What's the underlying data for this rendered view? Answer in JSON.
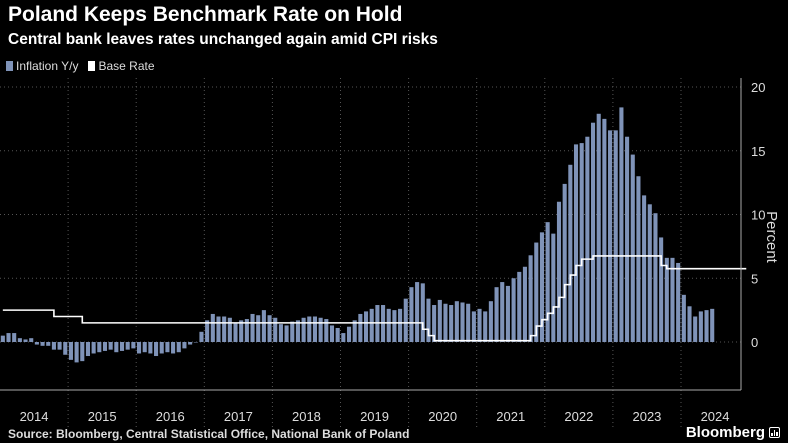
{
  "header": {
    "title": "Poland Keeps Benchmark Rate on Hold",
    "subtitle": "Central bank leaves rates unchanged again amid CPI risks"
  },
  "footer": {
    "source": "Source: Bloomberg, Central Statistical Office, National Bank of Poland",
    "brand": "Bloomberg"
  },
  "colors": {
    "inflation": "#7f93b8",
    "base_rate": "#ffffff",
    "background": "#000000",
    "grid": "#555555"
  },
  "chart_data": {
    "type": "bar",
    "title": "Poland Keeps Benchmark Rate on Hold",
    "subtitle": "Central bank leaves rates unchanged again amid CPI risks",
    "ylabel": "Percent",
    "xlabel": "",
    "ylim": [
      -3.5,
      20
    ],
    "yticks": [
      0,
      5,
      10,
      15,
      20
    ],
    "x_start": "2014-01",
    "x_end": "2024-12",
    "year_labels": [
      "2014",
      "2015",
      "2016",
      "2017",
      "2018",
      "2019",
      "2020",
      "2021",
      "2022",
      "2023",
      "2024"
    ],
    "legend": [
      "Inflation Y/y",
      "Base Rate"
    ],
    "series": [
      {
        "name": "Inflation Y/y",
        "type": "bar",
        "start": "2014-01",
        "values": [
          0.5,
          0.7,
          0.7,
          0.3,
          0.2,
          0.3,
          -0.2,
          -0.3,
          -0.3,
          -0.6,
          -0.6,
          -1.0,
          -1.4,
          -1.6,
          -1.5,
          -1.1,
          -0.9,
          -0.8,
          -0.7,
          -0.6,
          -0.8,
          -0.7,
          -0.6,
          -0.5,
          -0.9,
          -0.8,
          -0.9,
          -1.1,
          -0.9,
          -0.8,
          -0.9,
          -0.8,
          -0.5,
          -0.2,
          0.0,
          0.8,
          1.7,
          2.2,
          2.0,
          2.0,
          1.9,
          1.5,
          1.7,
          1.8,
          2.2,
          2.1,
          2.5,
          2.1,
          1.9,
          1.4,
          1.3,
          1.6,
          1.7,
          1.9,
          2.0,
          2.0,
          1.9,
          1.8,
          1.3,
          1.1,
          0.7,
          1.2,
          1.7,
          2.2,
          2.4,
          2.6,
          2.9,
          2.9,
          2.6,
          2.5,
          2.6,
          3.4,
          4.3,
          4.7,
          4.6,
          3.4,
          2.9,
          3.3,
          3.0,
          2.9,
          3.2,
          3.1,
          3.0,
          2.4,
          2.6,
          2.4,
          3.2,
          4.3,
          4.7,
          4.4,
          5.0,
          5.5,
          5.9,
          6.8,
          7.8,
          8.6,
          9.4,
          8.5,
          11.0,
          12.4,
          13.9,
          15.5,
          15.6,
          16.1,
          17.2,
          17.9,
          17.5,
          16.6,
          16.6,
          18.4,
          16.1,
          14.7,
          13.0,
          11.5,
          10.8,
          10.1,
          8.2,
          6.6,
          6.6,
          6.2,
          3.7,
          2.8,
          2.0,
          2.4,
          2.5,
          2.6
        ]
      },
      {
        "name": "Base Rate",
        "type": "step",
        "points": [
          [
            "2014-01",
            2.5
          ],
          [
            "2014-10",
            2.0
          ],
          [
            "2015-03",
            1.5
          ],
          [
            "2020-03",
            1.0
          ],
          [
            "2020-04",
            0.5
          ],
          [
            "2020-05",
            0.1
          ],
          [
            "2021-10",
            0.5
          ],
          [
            "2021-11",
            1.25
          ],
          [
            "2021-12",
            1.75
          ],
          [
            "2022-01",
            2.25
          ],
          [
            "2022-02",
            2.75
          ],
          [
            "2022-03",
            3.5
          ],
          [
            "2022-04",
            4.5
          ],
          [
            "2022-05",
            5.25
          ],
          [
            "2022-06",
            6.0
          ],
          [
            "2022-07",
            6.5
          ],
          [
            "2022-09",
            6.75
          ],
          [
            "2023-09",
            6.0
          ],
          [
            "2023-10",
            5.75
          ],
          [
            "2024-12",
            5.75
          ]
        ]
      }
    ]
  }
}
